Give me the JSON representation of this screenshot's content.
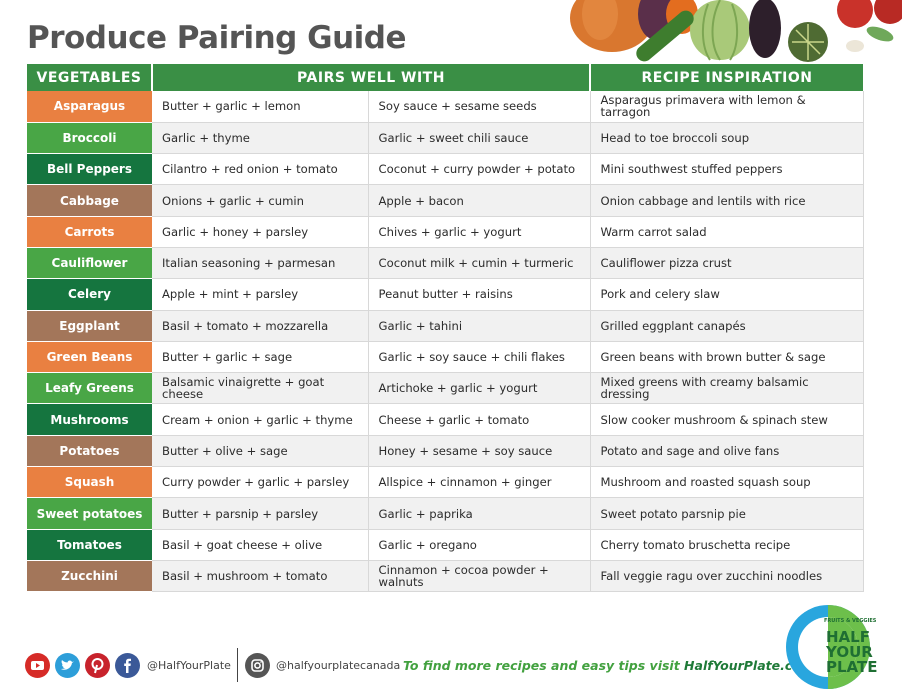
{
  "title": "Produce Pairing Guide",
  "colors": {
    "orange": "#e98041",
    "green": "#49a646",
    "dark_green": "#15753f",
    "brown": "#a3765a",
    "header": "#3a8f45"
  },
  "table": {
    "headers": [
      "VEGETABLES",
      "PAIRS WELL WITH",
      "RECIPE INSPIRATION"
    ],
    "rows": [
      {
        "veg": "Asparagus",
        "color": "orange",
        "pair1": "Butter + garlic + lemon",
        "pair2": "Soy sauce + sesame seeds",
        "recipe": "Asparagus primavera with lemon & tarragon"
      },
      {
        "veg": "Broccoli",
        "color": "green",
        "pair1": "Garlic + thyme",
        "pair2": "Garlic + sweet chili sauce",
        "recipe": "Head to toe broccoli soup"
      },
      {
        "veg": "Bell Peppers",
        "color": "dark",
        "pair1": "Cilantro + red onion + tomato",
        "pair2": "Coconut + curry powder + potato",
        "recipe": "Mini southwest stuffed peppers"
      },
      {
        "veg": "Cabbage",
        "color": "brown",
        "pair1": "Onions + garlic + cumin",
        "pair2": "Apple + bacon",
        "recipe": "Onion cabbage and lentils with rice"
      },
      {
        "veg": "Carrots",
        "color": "orange",
        "pair1": "Garlic + honey + parsley",
        "pair2": "Chives + garlic + yogurt",
        "recipe": "Warm carrot salad"
      },
      {
        "veg": "Cauliflower",
        "color": "green",
        "pair1": "Italian seasoning + parmesan",
        "pair2": "Coconut milk + cumin + turmeric",
        "recipe": "Cauliflower pizza crust"
      },
      {
        "veg": "Celery",
        "color": "dark",
        "pair1": "Apple + mint + parsley",
        "pair2": "Peanut butter + raisins",
        "recipe": "Pork and celery slaw"
      },
      {
        "veg": "Eggplant",
        "color": "brown",
        "pair1": "Basil + tomato + mozzarella",
        "pair2": "Garlic + tahini",
        "recipe": "Grilled eggplant canapés"
      },
      {
        "veg": "Green Beans",
        "color": "orange",
        "pair1": "Butter + garlic + sage",
        "pair2": "Garlic + soy sauce + chili flakes",
        "recipe": "Green beans with brown butter & sage"
      },
      {
        "veg": "Leafy Greens",
        "color": "green",
        "pair1": "Balsamic vinaigrette + goat cheese",
        "pair2": "Artichoke + garlic + yogurt",
        "recipe": "Mixed greens with creamy balsamic dressing"
      },
      {
        "veg": "Mushrooms",
        "color": "dark",
        "pair1": "Cream + onion + garlic + thyme",
        "pair2": "Cheese + garlic + tomato",
        "recipe": "Slow cooker mushroom & spinach stew"
      },
      {
        "veg": "Potatoes",
        "color": "brown",
        "pair1": "Butter + olive + sage",
        "pair2": "Honey + sesame + soy sauce",
        "recipe": "Potato and sage and olive fans"
      },
      {
        "veg": "Squash",
        "color": "orange",
        "pair1": "Curry powder + garlic + parsley",
        "pair2": "Allspice + cinnamon + ginger",
        "recipe": "Mushroom and roasted squash soup"
      },
      {
        "veg": "Sweet potatoes",
        "color": "green",
        "pair1": "Butter + parsnip + parsley",
        "pair2": "Garlic + paprika",
        "recipe": "Sweet potato parsnip pie"
      },
      {
        "veg": "Tomatoes",
        "color": "dark",
        "pair1": "Basil + goat cheese + olive",
        "pair2": "Garlic + oregano",
        "recipe": "Cherry tomato bruschetta recipe"
      },
      {
        "veg": "Zucchini",
        "color": "brown",
        "pair1": "Basil + mushroom + tomato",
        "pair2": "Cinnamon + cocoa powder + walnuts",
        "recipe": "Fall veggie ragu over zucchini noodles"
      }
    ]
  },
  "footer": {
    "social_icons": [
      "youtube-icon",
      "twitter-icon",
      "pinterest-icon",
      "facebook-icon",
      "instagram-icon"
    ],
    "handle_main": "@HalfYourPlate",
    "handle_instagram": "@halfyourplatecanada",
    "tagline": "To find more recipes and easy tips visit",
    "url": "HalfYourPlate.ca"
  },
  "logo": {
    "small_text": "FRUITS & VEGGIES",
    "line1": "HALF",
    "line2": "YOUR",
    "line3": "PLATE"
  }
}
